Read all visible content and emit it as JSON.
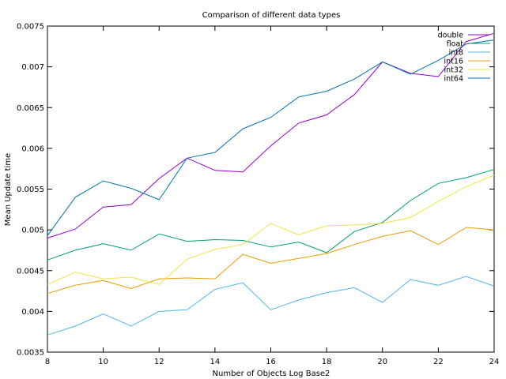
{
  "chart_data": {
    "type": "line",
    "title": "Comparison of different data types",
    "xlabel": "Number of Objects Log Base2",
    "ylabel": "Mean Update time",
    "xlim": [
      8,
      24
    ],
    "ylim": [
      0.0035,
      0.0075
    ],
    "grid": false,
    "legend_position": "top-right",
    "x_ticks": [
      8,
      10,
      12,
      14,
      16,
      18,
      20,
      22,
      24
    ],
    "y_ticks": [
      0.0035,
      0.004,
      0.0045,
      0.005,
      0.0055,
      0.006,
      0.0065,
      0.007,
      0.0075
    ],
    "x_tick_labels": [
      "8",
      "10",
      "12",
      "14",
      "16",
      "18",
      "20",
      "22",
      "24"
    ],
    "y_tick_labels": [
      "0.0035",
      "0.004",
      "0.0045",
      "0.005",
      "0.0055",
      "0.006",
      "0.0065",
      "0.007",
      "0.0075"
    ],
    "x": [
      8,
      9,
      10,
      11,
      12,
      13,
      14,
      15,
      16,
      17,
      18,
      19,
      20,
      21,
      22,
      23,
      24
    ],
    "series": [
      {
        "name": "double",
        "color": "#9400d3",
        "values": [
          0.0049,
          0.00501,
          0.00528,
          0.00531,
          0.00563,
          0.00588,
          0.00573,
          0.00571,
          0.00603,
          0.00631,
          0.00641,
          0.00666,
          0.00706,
          0.00692,
          0.00688,
          0.00731,
          0.00741
        ]
      },
      {
        "name": "float",
        "color": "#009e73",
        "values": [
          0.00463,
          0.00475,
          0.00483,
          0.00475,
          0.00495,
          0.00486,
          0.00488,
          0.00487,
          0.00479,
          0.00485,
          0.00472,
          0.00498,
          0.00509,
          0.00536,
          0.00557,
          0.00564,
          0.00574
        ]
      },
      {
        "name": "int8",
        "color": "#56b4e9",
        "values": [
          0.00371,
          0.00382,
          0.00397,
          0.00382,
          0.004,
          0.00402,
          0.00427,
          0.00435,
          0.00402,
          0.00414,
          0.00423,
          0.00429,
          0.00411,
          0.00439,
          0.00432,
          0.00443,
          0.00431
        ]
      },
      {
        "name": "int16",
        "color": "#e69f00",
        "values": [
          0.00422,
          0.00432,
          0.00438,
          0.00428,
          0.0044,
          0.00441,
          0.0044,
          0.0047,
          0.00459,
          0.00465,
          0.00471,
          0.00482,
          0.00492,
          0.00499,
          0.00482,
          0.00503,
          0.005
        ]
      },
      {
        "name": "int32",
        "color": "#f0e442",
        "values": [
          0.00433,
          0.00448,
          0.0044,
          0.00442,
          0.00433,
          0.00464,
          0.00476,
          0.00482,
          0.00508,
          0.00494,
          0.00505,
          0.00506,
          0.00508,
          0.00515,
          0.00535,
          0.00553,
          0.00567
        ]
      },
      {
        "name": "int64",
        "color": "#0072b2",
        "values": [
          0.00493,
          0.0054,
          0.0056,
          0.00551,
          0.00537,
          0.00588,
          0.00595,
          0.00624,
          0.00638,
          0.00663,
          0.0067,
          0.00685,
          0.00706,
          0.00691,
          0.00708,
          0.00728,
          0.00733
        ]
      }
    ]
  }
}
